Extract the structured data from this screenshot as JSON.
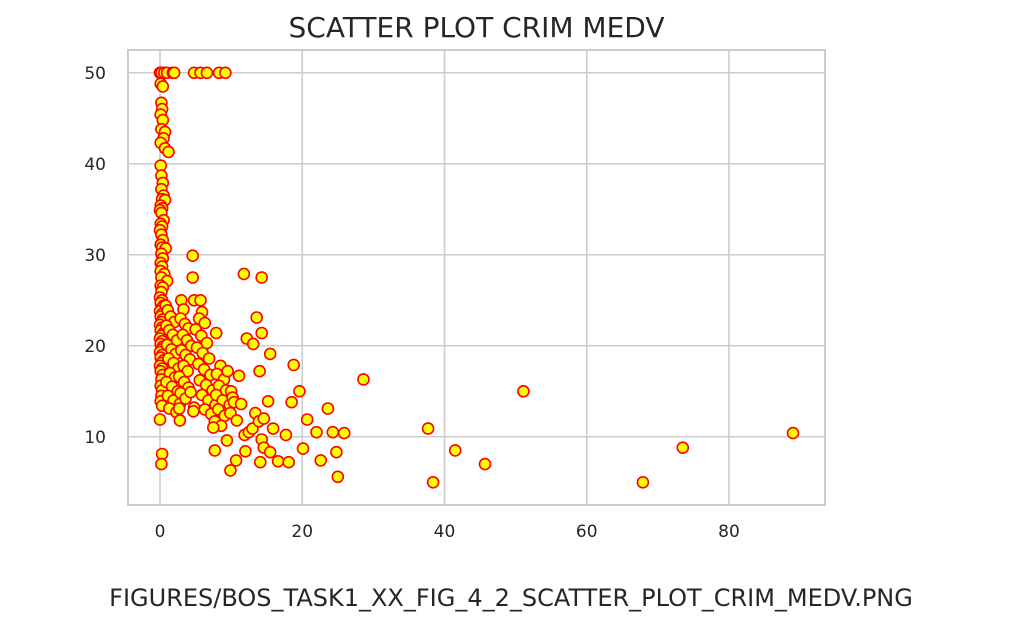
{
  "caption": "FIGURES/BOS_TASK1_XX_FIG_4_2_SCATTER_PLOT_CRIM_MEDV.PNG",
  "chart_data": {
    "type": "scatter",
    "title": "SCATTER PLOT CRIM MEDV",
    "xlabel": "",
    "ylabel": "",
    "xlim": [
      -4.5,
      93.5
    ],
    "ylim": [
      2.5,
      52.5
    ],
    "xticks": [
      0,
      20,
      40,
      60,
      80
    ],
    "yticks": [
      10,
      20,
      30,
      40,
      50
    ],
    "grid": true,
    "marker_face_color": "#ffff00",
    "marker_edge_color": "#ff0000",
    "grid_color": "#cccccc",
    "points": [
      [
        0.0,
        50.0
      ],
      [
        0.2,
        50.0
      ],
      [
        0.6,
        50.0
      ],
      [
        1.0,
        50.0
      ],
      [
        1.8,
        50.0
      ],
      [
        2.0,
        50.0
      ],
      [
        4.8,
        50.0
      ],
      [
        5.7,
        50.0
      ],
      [
        6.6,
        50.0
      ],
      [
        8.3,
        50.0
      ],
      [
        9.2,
        50.0
      ],
      [
        0.1,
        48.8
      ],
      [
        0.4,
        48.5
      ],
      [
        0.2,
        46.7
      ],
      [
        0.3,
        46.0
      ],
      [
        0.1,
        45.4
      ],
      [
        0.4,
        44.8
      ],
      [
        0.2,
        43.8
      ],
      [
        0.7,
        43.5
      ],
      [
        0.5,
        42.8
      ],
      [
        0.1,
        42.3
      ],
      [
        0.7,
        41.7
      ],
      [
        1.2,
        41.3
      ],
      [
        0.1,
        39.8
      ],
      [
        0.2,
        38.7
      ],
      [
        0.4,
        37.9
      ],
      [
        0.2,
        37.2
      ],
      [
        0.5,
        36.5
      ],
      [
        0.3,
        36.1
      ],
      [
        0.7,
        36.0
      ],
      [
        0.1,
        35.4
      ],
      [
        0.3,
        35.1
      ],
      [
        0.0,
        34.9
      ],
      [
        0.2,
        34.6
      ],
      [
        0.5,
        33.8
      ],
      [
        0.1,
        33.4
      ],
      [
        0.3,
        33.1
      ],
      [
        0.0,
        32.7
      ],
      [
        0.2,
        32.2
      ],
      [
        0.4,
        31.6
      ],
      [
        0.1,
        31.1
      ],
      [
        0.3,
        30.8
      ],
      [
        0.8,
        30.7
      ],
      [
        0.2,
        30.1
      ],
      [
        0.4,
        29.6
      ],
      [
        0.1,
        29.1
      ],
      [
        0.3,
        28.7
      ],
      [
        0.1,
        28.2
      ],
      [
        0.6,
        27.9
      ],
      [
        0.2,
        27.5
      ],
      [
        1.0,
        27.1
      ],
      [
        0.1,
        26.6
      ],
      [
        0.4,
        26.4
      ],
      [
        0.2,
        25.9
      ],
      [
        0.0,
        25.3
      ],
      [
        0.3,
        25.0
      ],
      [
        0.1,
        24.7
      ],
      [
        0.5,
        24.4
      ],
      [
        0.2,
        24.1
      ],
      [
        0.0,
        23.8
      ],
      [
        0.3,
        23.5
      ],
      [
        0.1,
        23.2
      ],
      [
        0.4,
        22.9
      ],
      [
        0.2,
        22.6
      ],
      [
        0.0,
        22.3
      ],
      [
        0.3,
        22.0
      ],
      [
        0.1,
        21.7
      ],
      [
        0.5,
        21.4
      ],
      [
        0.2,
        21.1
      ],
      [
        0.0,
        20.8
      ],
      [
        0.3,
        20.5
      ],
      [
        0.1,
        20.2
      ],
      [
        0.4,
        19.9
      ],
      [
        0.2,
        19.6
      ],
      [
        0.0,
        19.3
      ],
      [
        0.3,
        19.0
      ],
      [
        0.1,
        18.7
      ],
      [
        0.5,
        18.4
      ],
      [
        0.2,
        18.1
      ],
      [
        0.0,
        17.8
      ],
      [
        0.3,
        17.5
      ],
      [
        0.1,
        17.2
      ],
      [
        0.4,
        16.8
      ],
      [
        0.2,
        16.3
      ],
      [
        0.1,
        15.6
      ],
      [
        0.3,
        15.1
      ],
      [
        0.2,
        14.5
      ],
      [
        0.1,
        13.9
      ],
      [
        0.3,
        13.4
      ],
      [
        0.0,
        11.9
      ],
      [
        0.3,
        8.1
      ],
      [
        0.2,
        7.0
      ],
      [
        0.8,
        24.4
      ],
      [
        1.1,
        23.9
      ],
      [
        1.5,
        23.2
      ],
      [
        2.0,
        22.6
      ],
      [
        0.9,
        22.2
      ],
      [
        1.3,
        21.7
      ],
      [
        1.8,
        21.2
      ],
      [
        2.4,
        20.6
      ],
      [
        1.0,
        20.1
      ],
      [
        1.6,
        19.6
      ],
      [
        2.2,
        19.1
      ],
      [
        1.2,
        18.6
      ],
      [
        1.9,
        18.1
      ],
      [
        2.6,
        17.5
      ],
      [
        1.4,
        17.0
      ],
      [
        2.1,
        16.5
      ],
      [
        0.9,
        16.0
      ],
      [
        1.7,
        15.5
      ],
      [
        2.5,
        15.0
      ],
      [
        1.1,
        14.5
      ],
      [
        1.9,
        14.0
      ],
      [
        2.8,
        13.6
      ],
      [
        1.3,
        13.1
      ],
      [
        2.3,
        12.7
      ],
      [
        3.0,
        25.0
      ],
      [
        3.3,
        24.0
      ],
      [
        2.9,
        23.0
      ],
      [
        3.5,
        22.4
      ],
      [
        4.0,
        21.9
      ],
      [
        3.2,
        21.2
      ],
      [
        3.8,
        20.6
      ],
      [
        4.4,
        20.0
      ],
      [
        3.0,
        19.5
      ],
      [
        3.6,
        19.0
      ],
      [
        4.2,
        18.5
      ],
      [
        3.3,
        17.8
      ],
      [
        3.9,
        17.2
      ],
      [
        2.7,
        16.6
      ],
      [
        3.4,
        16.0
      ],
      [
        4.0,
        15.4
      ],
      [
        2.9,
        14.8
      ],
      [
        3.6,
        14.2
      ],
      [
        2.7,
        13.1
      ],
      [
        2.8,
        11.8
      ],
      [
        4.3,
        14.9
      ],
      [
        4.8,
        13.2
      ],
      [
        4.7,
        12.8
      ],
      [
        4.6,
        29.9
      ],
      [
        4.6,
        27.5
      ],
      [
        4.8,
        25.0
      ],
      [
        5.7,
        25.0
      ],
      [
        5.9,
        23.7
      ],
      [
        5.5,
        23.0
      ],
      [
        6.3,
        22.5
      ],
      [
        5.0,
        21.8
      ],
      [
        5.8,
        21.1
      ],
      [
        6.6,
        20.3
      ],
      [
        5.2,
        19.8
      ],
      [
        6.0,
        19.2
      ],
      [
        6.9,
        18.6
      ],
      [
        5.4,
        18.0
      ],
      [
        6.2,
        17.4
      ],
      [
        7.1,
        16.8
      ],
      [
        5.6,
        16.2
      ],
      [
        6.5,
        15.7
      ],
      [
        7.4,
        15.1
      ],
      [
        5.9,
        14.6
      ],
      [
        6.8,
        14.0
      ],
      [
        7.8,
        13.5
      ],
      [
        6.3,
        13.0
      ],
      [
        7.2,
        12.5
      ],
      [
        7.9,
        21.4
      ],
      [
        8.5,
        17.8
      ],
      [
        8.0,
        16.9
      ],
      [
        9.0,
        16.3
      ],
      [
        8.3,
        15.6
      ],
      [
        9.3,
        15.1
      ],
      [
        7.9,
        14.6
      ],
      [
        8.8,
        14.0
      ],
      [
        9.8,
        13.5
      ],
      [
        8.2,
        13.0
      ],
      [
        9.1,
        12.3
      ],
      [
        7.7,
        11.7
      ],
      [
        8.6,
        11.2
      ],
      [
        7.5,
        11.0
      ],
      [
        9.4,
        9.6
      ],
      [
        7.7,
        8.5
      ],
      [
        9.5,
        17.2
      ],
      [
        10.0,
        15.0
      ],
      [
        10.2,
        14.3
      ],
      [
        10.4,
        13.8
      ],
      [
        9.9,
        12.6
      ],
      [
        10.8,
        11.8
      ],
      [
        11.1,
        16.7
      ],
      [
        11.4,
        13.6
      ],
      [
        10.7,
        7.4
      ],
      [
        9.9,
        6.3
      ],
      [
        11.8,
        27.9
      ],
      [
        12.2,
        20.8
      ],
      [
        13.1,
        20.2
      ],
      [
        13.6,
        23.1
      ],
      [
        14.3,
        21.4
      ],
      [
        14.3,
        27.5
      ],
      [
        15.5,
        19.1
      ],
      [
        14.0,
        17.2
      ],
      [
        11.9,
        10.2
      ],
      [
        12.5,
        10.5
      ],
      [
        13.0,
        10.9
      ],
      [
        12.0,
        8.4
      ],
      [
        13.4,
        12.6
      ],
      [
        13.9,
        11.7
      ],
      [
        14.6,
        12.0
      ],
      [
        15.2,
        13.9
      ],
      [
        14.3,
        9.7
      ],
      [
        14.6,
        8.8
      ],
      [
        15.5,
        8.3
      ],
      [
        14.1,
        7.2
      ],
      [
        15.9,
        10.9
      ],
      [
        16.6,
        7.3
      ],
      [
        17.7,
        10.2
      ],
      [
        18.1,
        7.2
      ],
      [
        18.8,
        17.9
      ],
      [
        18.5,
        13.8
      ],
      [
        19.6,
        15.0
      ],
      [
        20.1,
        8.7
      ],
      [
        20.7,
        11.9
      ],
      [
        22.0,
        10.5
      ],
      [
        22.6,
        7.4
      ],
      [
        23.6,
        13.1
      ],
      [
        24.3,
        10.5
      ],
      [
        24.8,
        8.3
      ],
      [
        25.0,
        5.6
      ],
      [
        25.9,
        10.4
      ],
      [
        28.6,
        16.3
      ],
      [
        37.7,
        10.9
      ],
      [
        38.4,
        5.0
      ],
      [
        41.5,
        8.5
      ],
      [
        45.7,
        7.0
      ],
      [
        51.1,
        15.0
      ],
      [
        67.9,
        5.0
      ],
      [
        73.5,
        8.8
      ],
      [
        89.0,
        10.4
      ]
    ]
  }
}
